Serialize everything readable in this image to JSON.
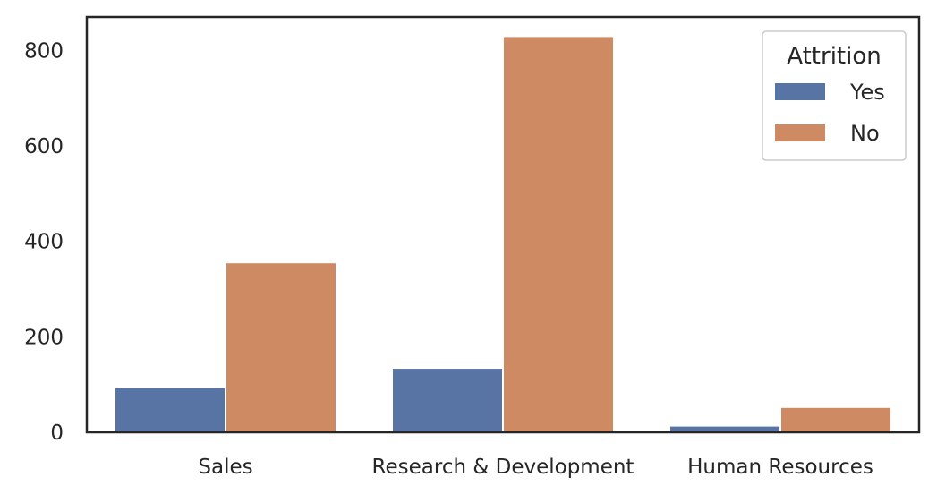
{
  "chart_data": {
    "type": "bar",
    "categories": [
      "Sales",
      "Research & Development",
      "Human Resources"
    ],
    "series": [
      {
        "name": "Yes",
        "values": [
          92,
          133,
          12
        ],
        "color": "#5874a5"
      },
      {
        "name": "No",
        "values": [
          354,
          828,
          51
        ],
        "color": "#cd8a63"
      }
    ],
    "title": "",
    "xlabel": "",
    "ylabel": "",
    "ylim": [
      0,
      870
    ],
    "yticks": [
      0,
      200,
      400,
      600,
      800
    ],
    "grid": false,
    "legend": {
      "title": "Attrition",
      "placement": "top-right"
    }
  }
}
